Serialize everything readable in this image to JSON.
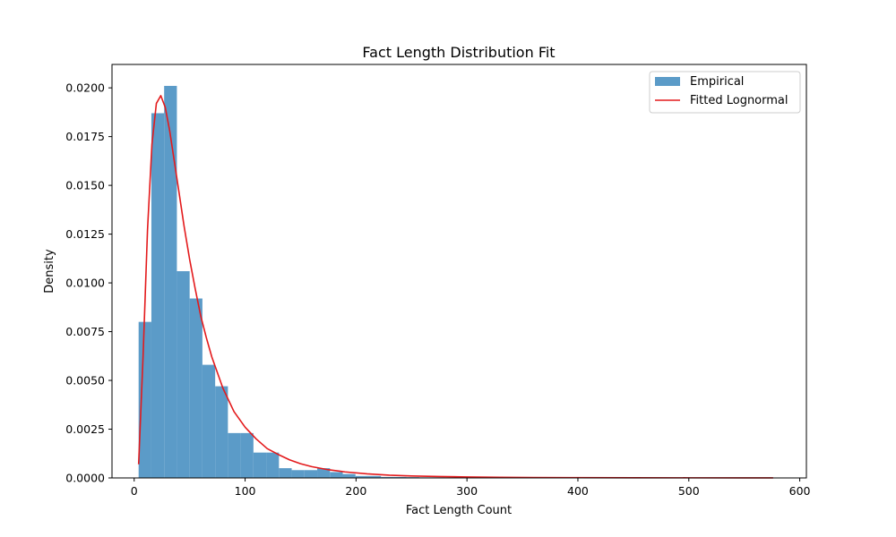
{
  "chart_data": {
    "type": "bar",
    "title": "Fact Length Distribution Fit",
    "xlabel": "Fact Length Count",
    "ylabel": "Density",
    "xlim": [
      -20,
      606
    ],
    "ylim": [
      0,
      0.0212
    ],
    "grid": false,
    "legend_position": "top-right",
    "xticks": [
      "0",
      "100",
      "200",
      "300",
      "400",
      "500",
      "600"
    ],
    "xtick_values": [
      0,
      100,
      200,
      300,
      400,
      500,
      600
    ],
    "yticks": [
      "0.0000",
      "0.0025",
      "0.0050",
      "0.0075",
      "0.0100",
      "0.0125",
      "0.0150",
      "0.0175",
      "0.0200"
    ],
    "ytick_values": [
      0,
      0.0025,
      0.005,
      0.0075,
      0.01,
      0.0125,
      0.015,
      0.0175,
      0.02
    ],
    "histogram": {
      "name": "Empirical",
      "color": "#5b9bc8",
      "bin_start": 4,
      "bin_width": 11.5,
      "densities": [
        0.008,
        0.0187,
        0.0201,
        0.0106,
        0.0092,
        0.0058,
        0.0047,
        0.0023,
        0.0023,
        0.0013,
        0.0013,
        0.0005,
        0.0004,
        0.0004,
        0.0005,
        0.0003,
        0.0002,
        0.0001,
        0.0001,
        5e-05,
        5e-05,
        4e-05,
        3e-05,
        3e-05,
        2e-05,
        2e-05,
        2e-05,
        2e-05,
        1e-05,
        1e-05,
        3e-05,
        1e-05,
        1e-05,
        1e-05,
        1e-05,
        1e-05,
        1e-05,
        1e-05,
        1e-05,
        1e-05,
        1e-05,
        1e-05,
        1e-05,
        1e-05,
        1e-05,
        1e-05,
        1e-05,
        1e-05,
        1e-05,
        1e-05
      ]
    },
    "series": [
      {
        "name": "Fitted Lognormal",
        "color": "#e31a1c",
        "x": [
          4,
          8,
          12,
          16,
          20,
          24,
          28,
          32,
          36,
          40,
          45,
          50,
          55,
          60,
          65,
          70,
          80,
          90,
          100,
          110,
          120,
          130,
          140,
          150,
          160,
          175,
          190,
          210,
          230,
          250,
          275,
          300,
          330,
          360,
          400,
          450,
          500,
          550,
          576
        ],
        "y": [
          0.0007,
          0.0062,
          0.0127,
          0.0171,
          0.0192,
          0.0196,
          0.019,
          0.0178,
          0.0163,
          0.0148,
          0.0129,
          0.0112,
          0.0097,
          0.0083,
          0.0072,
          0.0062,
          0.0046,
          0.0034,
          0.0026,
          0.002,
          0.0015,
          0.0012,
          0.00093,
          0.00073,
          0.00058,
          0.00042,
          0.00031,
          0.00021,
          0.00014,
          0.0001,
          7e-05,
          5e-05,
          3.3e-05,
          2.3e-05,
          1.5e-05,
          9e-06,
          6e-06,
          4e-06,
          3e-06
        ]
      }
    ]
  }
}
